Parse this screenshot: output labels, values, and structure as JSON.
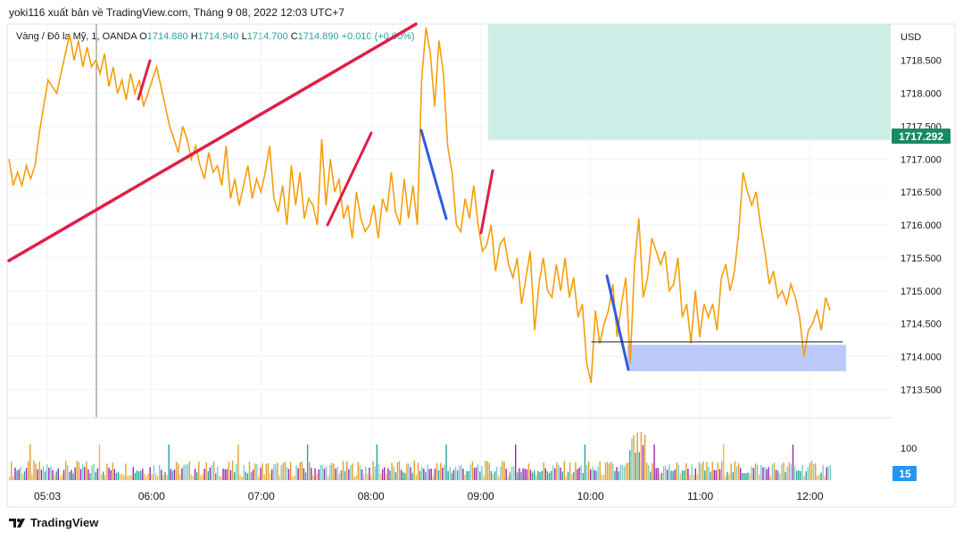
{
  "header": {
    "publisher": "yoki116 xuất bản về TradingView.com, Tháng 9 08, 2022 12:03 UTC+7"
  },
  "legend": {
    "symbol": "Vàng / Đô la Mỹ, 1, OANDA",
    "open_label": "O",
    "open": "1714.880",
    "high_label": "H",
    "high": "1714.940",
    "low_label": "L",
    "low": "1714.700",
    "close_label": "C",
    "close": "1714.890",
    "change": "+0.010 (+0.00%)"
  },
  "footer": {
    "brand": "TradingView"
  },
  "colors": {
    "price_line": "#f59e0b",
    "trend_red": "#e11d48",
    "trend_blue": "#2f5be0",
    "zone_green": "#cdeee6",
    "zone_blue": "#bcc9fb",
    "current_price_bg": "#1a8a64",
    "volume_badge_bg": "#2196f3"
  },
  "chart_data": {
    "type": "line",
    "currency": "USD",
    "y_ticks": [
      "1718.500",
      "1718.000",
      "1717.500",
      "1717.000",
      "1716.500",
      "1716.000",
      "1715.500",
      "1715.000",
      "1714.500",
      "1714.000",
      "1713.500"
    ],
    "ylim": [
      1713.1,
      1719.05
    ],
    "x_ticks": [
      "05:03",
      "06:00",
      "07:00",
      "08:00",
      "09:00",
      "10:00",
      "11:00",
      "12:00"
    ],
    "current_price": "1717.292",
    "volume_label": "100",
    "volume_current": "15",
    "series": [
      {
        "values": [
          1717.0,
          1716.6,
          1716.8,
          1716.6,
          1716.9,
          1716.7,
          1716.9,
          1717.4,
          1717.8,
          1718.2,
          1718.1,
          1718.0,
          1718.3,
          1718.6,
          1718.9,
          1718.5,
          1718.8,
          1718.4,
          1718.7,
          1718.4,
          1718.5,
          1718.3,
          1718.6,
          1718.1,
          1718.4,
          1718.0,
          1718.2,
          1717.9,
          1718.3,
          1718.0,
          1718.2,
          1717.8,
          1718.0,
          1718.2,
          1718.4,
          1718.1,
          1717.8,
          1717.5,
          1717.3,
          1717.1,
          1717.5,
          1717.3,
          1717.0,
          1717.2,
          1716.9,
          1716.7,
          1717.1,
          1716.8,
          1716.9,
          1716.6,
          1717.2,
          1716.4,
          1716.7,
          1716.3,
          1716.6,
          1716.9,
          1716.4,
          1716.7,
          1716.5,
          1716.8,
          1717.2,
          1716.4,
          1716.2,
          1716.6,
          1716.0,
          1716.9,
          1716.3,
          1716.8,
          1716.1,
          1716.4,
          1716.3,
          1716.0,
          1717.3,
          1716.3,
          1717.0,
          1716.5,
          1716.7,
          1716.1,
          1716.3,
          1715.8,
          1716.5,
          1716.1,
          1715.9,
          1716.0,
          1716.3,
          1715.8,
          1716.4,
          1716.2,
          1716.8,
          1716.2,
          1716.0,
          1716.7,
          1716.1,
          1716.6,
          1716.0,
          1718.2,
          1719.0,
          1718.6,
          1717.8,
          1718.8,
          1718.3,
          1717.2,
          1716.8,
          1716.0,
          1715.9,
          1716.4,
          1716.1,
          1716.6,
          1716.0,
          1715.6,
          1715.7,
          1716.0,
          1715.3,
          1715.7,
          1715.8,
          1715.4,
          1715.2,
          1715.5,
          1714.8,
          1715.2,
          1715.6,
          1714.4,
          1715.1,
          1715.5,
          1715.0,
          1714.9,
          1715.4,
          1715.0,
          1715.5,
          1714.9,
          1715.2,
          1714.6,
          1714.8,
          1713.9,
          1713.6,
          1714.7,
          1714.2,
          1714.5,
          1714.7,
          1715.1,
          1714.3,
          1714.8,
          1715.2,
          1713.9,
          1715.4,
          1716.1,
          1714.9,
          1715.2,
          1715.8,
          1715.6,
          1715.4,
          1715.6,
          1715.0,
          1715.1,
          1715.5,
          1714.6,
          1714.8,
          1714.2,
          1715.0,
          1714.3,
          1714.8,
          1714.6,
          1714.8,
          1714.4,
          1715.2,
          1715.4,
          1715.0,
          1715.3,
          1715.9,
          1716.8,
          1716.5,
          1716.3,
          1716.5,
          1716.0,
          1715.6,
          1715.1,
          1715.3,
          1714.9,
          1715.0,
          1714.8,
          1715.1,
          1714.9,
          1714.6,
          1714.0,
          1714.4,
          1714.5,
          1714.7,
          1714.4,
          1714.9,
          1714.7
        ]
      }
    ],
    "xlabel": "",
    "ylabel": "",
    "grid": true
  }
}
